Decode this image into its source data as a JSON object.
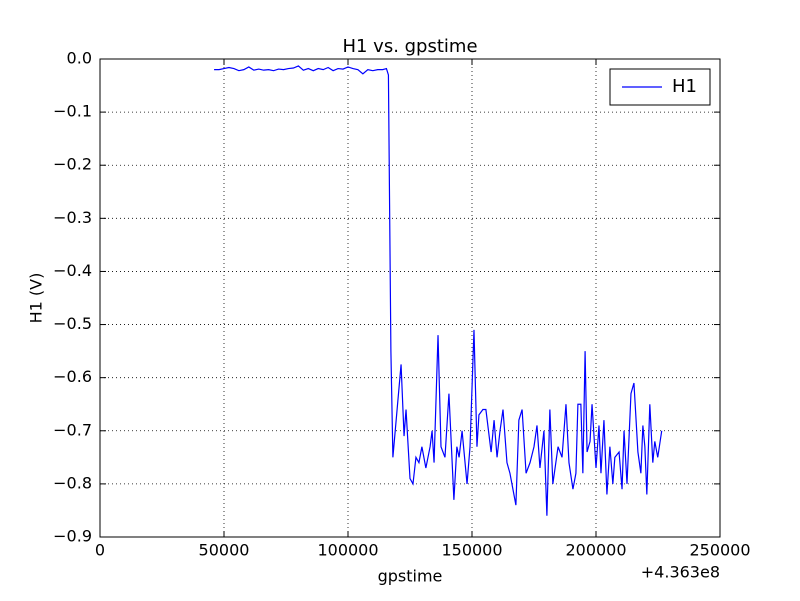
{
  "chart_data": {
    "type": "line",
    "title": "H1 vs. gpstime",
    "x_label": "gpstime",
    "y_label": "H1 (V)",
    "x_offset_label": "+4.363e8",
    "legend_position": "upper right",
    "grid": true,
    "xlim": [
      0,
      250000
    ],
    "xticks": [
      0,
      50000,
      100000,
      150000,
      200000,
      250000
    ],
    "ylim": [
      -0.9,
      0
    ],
    "yticks": [
      {
        "value": -0.9,
        "label": "−0.9"
      },
      {
        "value": -0.8,
        "label": "−0.8"
      },
      {
        "value": -0.7,
        "label": "−0.7"
      },
      {
        "value": -0.6,
        "label": "−0.6"
      },
      {
        "value": -0.5,
        "label": "−0.5"
      },
      {
        "value": -0.4,
        "label": "−0.4"
      },
      {
        "value": -0.3,
        "label": "−0.3"
      },
      {
        "value": -0.2,
        "label": "−0.2"
      },
      {
        "value": -0.1,
        "label": "−0.1"
      },
      {
        "value": 0,
        "label": "0.0"
      }
    ],
    "x": [
      46000,
      48000,
      50000,
      52000,
      54000,
      56000,
      58000,
      60000,
      62000,
      64000,
      66000,
      68000,
      70000,
      72000,
      74000,
      76000,
      78000,
      80000,
      82000,
      84000,
      86000,
      88000,
      90000,
      92000,
      94000,
      96000,
      98000,
      100000,
      102000,
      104000,
      106000,
      108000,
      110000,
      112000,
      114000,
      115500,
      116300,
      117300,
      118100,
      121400,
      122600,
      123400,
      125000,
      126200,
      127400,
      128600,
      129800,
      131400,
      133100,
      133900,
      134700,
      136300,
      137500,
      139100,
      140700,
      142700,
      143900,
      144800,
      146000,
      148000,
      149200,
      150800,
      152000,
      152800,
      154400,
      155600,
      157700,
      158900,
      160100,
      161300,
      162500,
      164100,
      165300,
      167700,
      168900,
      170200,
      171800,
      173400,
      175000,
      176200,
      177400,
      179000,
      180200,
      181400,
      182600,
      184700,
      186300,
      187900,
      189100,
      190700,
      191900,
      192700,
      193900,
      194700,
      195600,
      196400,
      197600,
      198400,
      200000,
      201200,
      202000,
      203200,
      204400,
      205600,
      206800,
      207600,
      209300,
      210500,
      211300,
      212500,
      214100,
      215300,
      216900,
      218100,
      218900,
      219700,
      220500,
      221700,
      222900,
      223700,
      224900,
      226500
    ],
    "series": [
      {
        "name": "H1",
        "color": "#0000ff",
        "values": [
          -0.02,
          -0.02,
          -0.018,
          -0.016,
          -0.018,
          -0.022,
          -0.02,
          -0.015,
          -0.021,
          -0.019,
          -0.021,
          -0.02,
          -0.022,
          -0.019,
          -0.02,
          -0.018,
          -0.017,
          -0.013,
          -0.021,
          -0.018,
          -0.022,
          -0.018,
          -0.02,
          -0.016,
          -0.022,
          -0.018,
          -0.019,
          -0.015,
          -0.018,
          -0.02,
          -0.028,
          -0.02,
          -0.022,
          -0.02,
          -0.02,
          -0.018,
          -0.03,
          -0.55,
          -0.75,
          -0.575,
          -0.71,
          -0.66,
          -0.79,
          -0.8,
          -0.75,
          -0.76,
          -0.73,
          -0.77,
          -0.73,
          -0.7,
          -0.76,
          -0.52,
          -0.73,
          -0.75,
          -0.63,
          -0.83,
          -0.73,
          -0.75,
          -0.7,
          -0.8,
          -0.73,
          -0.51,
          -0.73,
          -0.67,
          -0.66,
          -0.66,
          -0.74,
          -0.68,
          -0.75,
          -0.7,
          -0.66,
          -0.76,
          -0.78,
          -0.84,
          -0.68,
          -0.66,
          -0.78,
          -0.76,
          -0.73,
          -0.69,
          -0.77,
          -0.7,
          -0.86,
          -0.66,
          -0.8,
          -0.73,
          -0.75,
          -0.65,
          -0.76,
          -0.81,
          -0.78,
          -0.65,
          -0.65,
          -0.78,
          -0.55,
          -0.74,
          -0.72,
          -0.65,
          -0.77,
          -0.69,
          -0.78,
          -0.68,
          -0.82,
          -0.73,
          -0.8,
          -0.75,
          -0.74,
          -0.81,
          -0.7,
          -0.8,
          -0.63,
          -0.61,
          -0.74,
          -0.78,
          -0.69,
          -0.73,
          -0.82,
          -0.65,
          -0.76,
          -0.72,
          -0.75,
          -0.7
        ]
      }
    ]
  }
}
